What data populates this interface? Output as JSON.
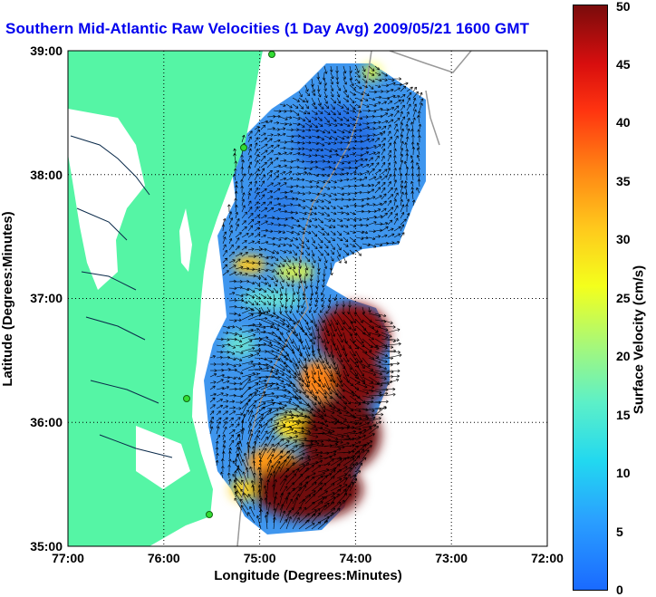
{
  "title": "Southern Mid-Atlantic Raw Velocities (1 Day Avg) 2009/05/21 1600 GMT",
  "map": {
    "xlabel": "Longitude (Degrees:Minutes)",
    "ylabel": "Latitude (Degrees:Minutes)",
    "x_ticks": [
      "77:00",
      "76:00",
      "75:00",
      "74:00",
      "73:00",
      "72:00"
    ],
    "y_ticks": [
      "39:00",
      "38:00",
      "37:00",
      "36:00",
      "35:00"
    ],
    "lon_range": [
      -77,
      -72
    ],
    "lat_range": [
      35,
      39
    ],
    "gridlines": "dotted",
    "land_color": "#55f5a5",
    "ocean_color": "#ffffff",
    "station_color": "#33dd33"
  },
  "colorbar": {
    "label": "Surface Velocity (cm/s)",
    "ticks": [
      "50",
      "45",
      "40",
      "35",
      "30",
      "25",
      "20",
      "15",
      "10",
      "5",
      "0"
    ],
    "range": [
      0,
      50
    ]
  }
}
